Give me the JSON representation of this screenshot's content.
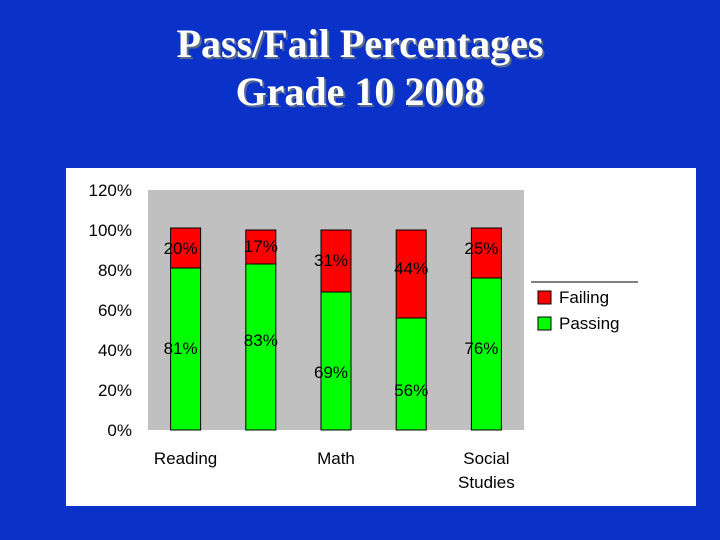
{
  "slide": {
    "title_line1": "Pass/Fail Percentages",
    "title_line2": "Grade 10 2008"
  },
  "chart_data": {
    "type": "bar",
    "stacked": true,
    "categories": [
      "Reading",
      "",
      "Math",
      "",
      "Social Studies"
    ],
    "category_label_lines": [
      [
        "Reading"
      ],
      [],
      [
        "Math"
      ],
      [],
      [
        "Social",
        "Studies"
      ]
    ],
    "series": [
      {
        "name": "Passing",
        "color": "#00ff00",
        "values": [
          81,
          83,
          69,
          56,
          76
        ],
        "labels": [
          "81%",
          "83%",
          "69%",
          "56%",
          "76%"
        ]
      },
      {
        "name": "Failing",
        "color": "#ff0000",
        "values": [
          20,
          17,
          31,
          44,
          25
        ],
        "labels": [
          "20%",
          "17%",
          "31%",
          "44%",
          "25%"
        ]
      }
    ],
    "yticks": [
      0,
      20,
      40,
      60,
      80,
      100,
      120
    ],
    "ytick_labels": [
      "0%",
      "20%",
      "40%",
      "60%",
      "80%",
      "100%",
      "120%"
    ],
    "ylim": [
      0,
      120
    ],
    "grid": false,
    "plot_background": "#c0c0c0",
    "legend": {
      "placement": "right",
      "order": [
        "Failing",
        "Passing"
      ]
    }
  }
}
